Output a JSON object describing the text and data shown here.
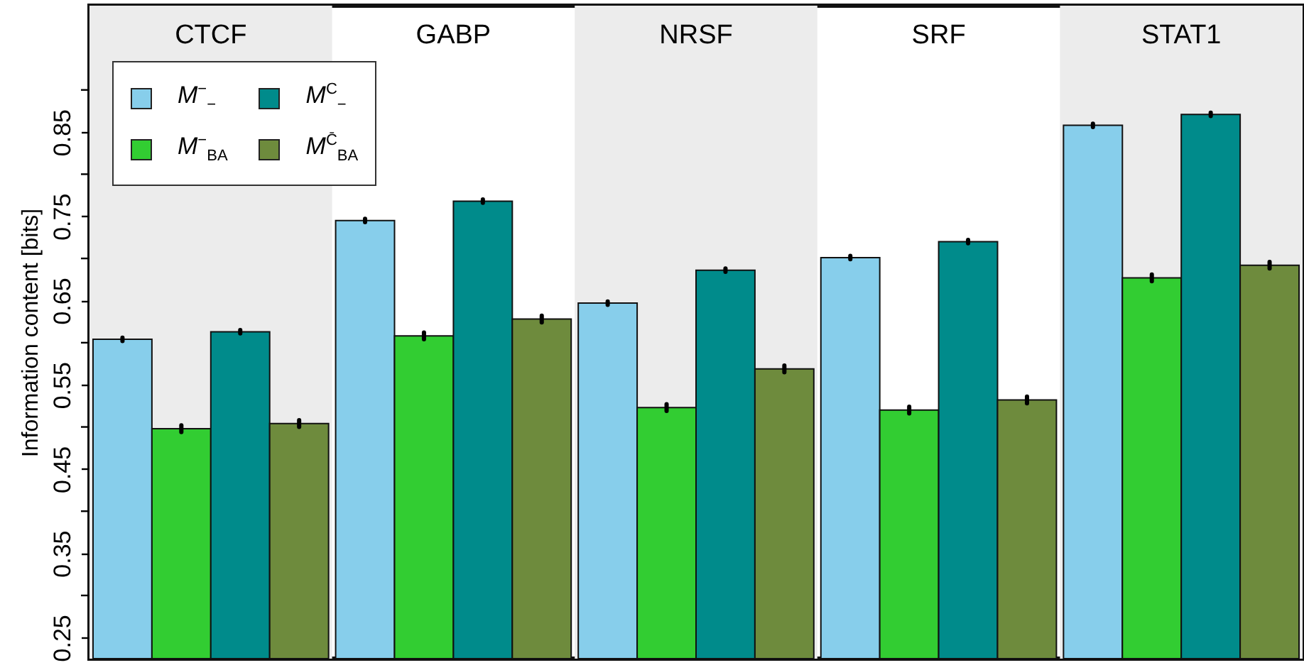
{
  "chart_data": {
    "type": "bar",
    "ylabel": "Information content [bits]",
    "categories": [
      "CTCF",
      "GABP",
      "NRSF",
      "SRF",
      "STAT1"
    ],
    "series": [
      {
        "name": "M$^{−}$$_{−}$",
        "color": "#87ceeb",
        "values": [
          0.604,
          0.745,
          0.647,
          0.701,
          0.858
        ],
        "errors": [
          0.002,
          0.002,
          0.002,
          0.002,
          0.002
        ]
      },
      {
        "name": "M$^{−}$$_{BA}$",
        "color": "#32cd32",
        "values": [
          0.498,
          0.608,
          0.523,
          0.52,
          0.677
        ],
        "errors": [
          0.004,
          0.004,
          0.004,
          0.004,
          0.004
        ]
      },
      {
        "name": "M$^{C}$$_{−}$",
        "color": "#008b8b",
        "values": [
          0.613,
          0.768,
          0.686,
          0.72,
          0.871
        ],
        "errors": [
          0.002,
          0.002,
          0.002,
          0.002,
          0.002
        ]
      },
      {
        "name": "M$^{C̄}$$_{BA}$",
        "color": "#6e8b3d",
        "values": [
          0.504,
          0.628,
          0.569,
          0.532,
          0.692
        ],
        "errors": [
          0.004,
          0.004,
          0.004,
          0.004,
          0.004
        ]
      }
    ],
    "ylim": [
      0.225,
      1.0
    ],
    "yticks": [
      0.25,
      {
        "value": 0.3,
        "label": null
      },
      0.35,
      {
        "value": 0.4,
        "label": null
      },
      0.45,
      {
        "value": 0.5,
        "label": null
      },
      0.55,
      {
        "value": 0.6,
        "label": null
      },
      0.65,
      {
        "value": 0.7,
        "label": null
      },
      0.75,
      {
        "value": 0.8,
        "label": null
      },
      0.85,
      {
        "value": 0.9,
        "label": null
      }
    ],
    "bands": [
      {
        "axis": "x",
        "from": "CTCF",
        "to": "CTCF",
        "color": "#ececec"
      },
      {
        "axis": "x",
        "from": "NRSF",
        "to": "NRSF",
        "color": "#ececec"
      },
      {
        "axis": "x",
        "from": "STAT1",
        "to": "STAT1",
        "color": "#ececec"
      }
    ],
    "legend": "top left",
    "grid": false
  }
}
